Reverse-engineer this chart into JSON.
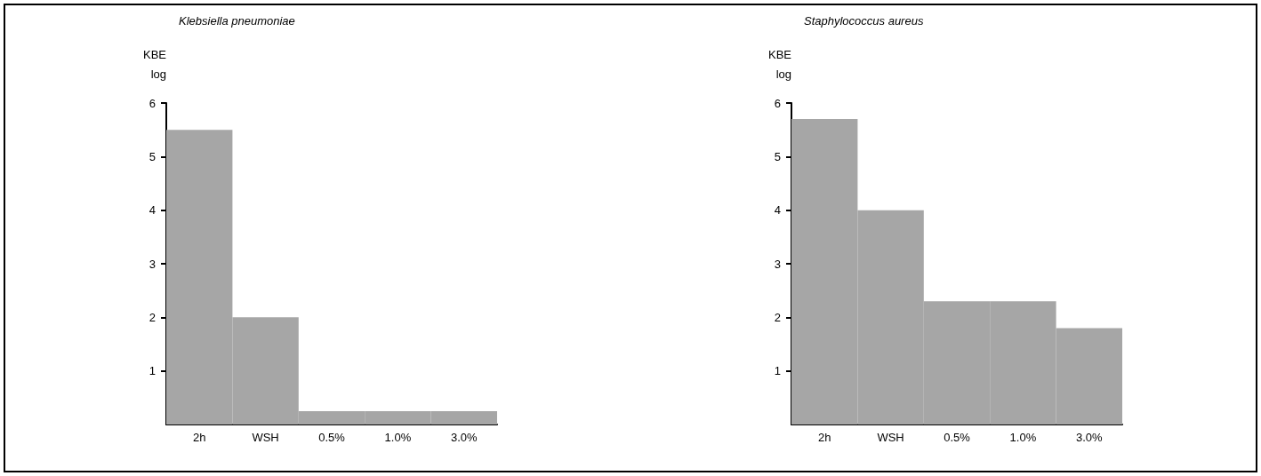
{
  "chart_data": [
    {
      "type": "bar",
      "title": "Klebsiella pneumoniae",
      "ylabel": "KBE log",
      "categories": [
        "2h",
        "WSH",
        "0.5%",
        "1.0%",
        "3.0%"
      ],
      "values": [
        5.5,
        2.0,
        0.25,
        0.25,
        0.25
      ],
      "color": "#a6a6a6",
      "ylim": [
        0,
        6
      ],
      "yticks": [
        1,
        2,
        3,
        4,
        5,
        6
      ],
      "grid": false
    },
    {
      "type": "bar",
      "title": "Staphylococcus aureus",
      "ylabel": "KBE log",
      "categories": [
        "2h",
        "WSH",
        "0.5%",
        "1.0%",
        "3.0%"
      ],
      "values": [
        5.7,
        4.0,
        2.3,
        2.3,
        1.8
      ],
      "color": "#a6a6a6",
      "ylim": [
        0,
        6
      ],
      "yticks": [
        1,
        2,
        3,
        4,
        5,
        6
      ],
      "grid": false
    }
  ]
}
